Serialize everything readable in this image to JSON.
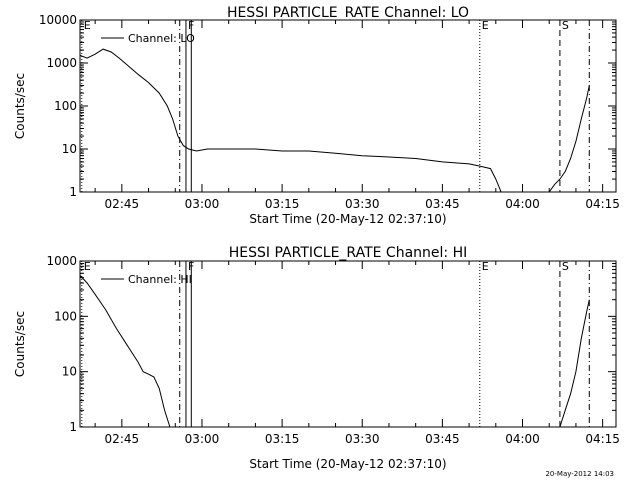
{
  "footer": {
    "stamp": "20-May-2012 14:03"
  },
  "chart_data": [
    {
      "type": "line",
      "title": "HESSI PARTICLE_RATE Channel: LO",
      "ylabel": "Counts/sec",
      "xlabel": "Start Time (20-May-12 02:37:10)",
      "yscale": "log",
      "ylim": [
        1,
        10000
      ],
      "xlim": [
        "02:37:10",
        "04:17:30"
      ],
      "yticks": [
        "1",
        "10",
        "100",
        "1000",
        "10000"
      ],
      "xticks": [
        "02:45",
        "03:00",
        "03:15",
        "03:30",
        "03:45",
        "04:00",
        "04:15"
      ],
      "legend": {
        "label": "Channel: LO",
        "placement": "top-left"
      },
      "markers": [
        {
          "label": "E",
          "time": "02:37:30",
          "style": "dotted"
        },
        {
          "label": "",
          "time": "02:55:50",
          "style": "dashdot"
        },
        {
          "label": "F",
          "time": "02:57:00",
          "style": "solid"
        },
        {
          "label": "",
          "time": "02:58:00",
          "style": "solid"
        },
        {
          "label": "E",
          "time": "03:52:00",
          "style": "dotted"
        },
        {
          "label": "S",
          "time": "04:07:00",
          "style": "dashed"
        },
        {
          "label": "",
          "time": "04:12:30",
          "style": "dashdot"
        }
      ],
      "series": [
        {
          "x": [
            "02:37:10",
            "02:38:30",
            "02:40:00",
            "02:41:30",
            "02:43:00",
            "02:44:30",
            "02:46:00",
            "02:48:00",
            "02:50:00",
            "02:52:00",
            "02:53:30",
            "02:54:30",
            "02:55:30",
            "02:56:30",
            "02:57:30",
            "02:59:00",
            "03:01:00",
            "03:05:00",
            "03:10:00",
            "03:15:00",
            "03:20:00",
            "03:25:00",
            "03:30:00",
            "03:35:00",
            "03:40:00",
            "03:45:00",
            "03:50:00",
            "03:52:00",
            "03:54:00",
            "03:55:00",
            "03:56:00"
          ],
          "values": [
            1500,
            1300,
            1600,
            2100,
            1800,
            1300,
            900,
            550,
            350,
            200,
            100,
            50,
            20,
            12,
            10,
            9,
            10,
            10,
            10,
            9,
            9,
            8,
            7,
            6.5,
            6,
            5,
            4.5,
            4,
            3.5,
            2,
            1
          ]
        },
        {
          "x": [
            "04:05:00",
            "04:06:00",
            "04:07:00",
            "04:08:00",
            "04:09:00",
            "04:10:00",
            "04:11:00",
            "04:12:00",
            "04:12:30"
          ],
          "values": [
            1,
            1.5,
            2,
            3,
            6,
            15,
            50,
            150,
            300
          ]
        }
      ]
    },
    {
      "type": "line",
      "title": "HESSI PARTICLE_RATE Channel: HI",
      "ylabel": "Counts/sec",
      "xlabel": "Start Time (20-May-12 02:37:10)",
      "yscale": "log",
      "ylim": [
        1,
        1000
      ],
      "xlim": [
        "02:37:10",
        "04:17:30"
      ],
      "yticks": [
        "1",
        "10",
        "100",
        "1000"
      ],
      "xticks": [
        "02:45",
        "03:00",
        "03:15",
        "03:30",
        "03:45",
        "04:00",
        "04:15"
      ],
      "legend": {
        "label": "Channel: HI",
        "placement": "top-left"
      },
      "markers": [
        {
          "label": "E",
          "time": "02:37:30",
          "style": "dotted"
        },
        {
          "label": "",
          "time": "02:55:50",
          "style": "dashdot"
        },
        {
          "label": "F",
          "time": "02:57:00",
          "style": "solid"
        },
        {
          "label": "",
          "time": "02:58:00",
          "style": "solid"
        },
        {
          "label": "E",
          "time": "03:52:00",
          "style": "dotted"
        },
        {
          "label": "S",
          "time": "04:07:00",
          "style": "dashed"
        },
        {
          "label": "",
          "time": "04:12:30",
          "style": "dashdot"
        }
      ],
      "series": [
        {
          "x": [
            "02:37:10",
            "02:38:30",
            "02:40:00",
            "02:42:00",
            "02:44:00",
            "02:46:00",
            "02:48:00",
            "02:49:00",
            "02:50:00",
            "02:51:00",
            "02:52:00",
            "02:53:00",
            "02:54:00"
          ],
          "values": [
            550,
            400,
            250,
            130,
            60,
            30,
            15,
            10,
            9,
            8,
            5,
            2,
            1
          ]
        },
        {
          "x": [
            "04:07:00",
            "04:08:00",
            "04:09:00",
            "04:10:00",
            "04:11:00",
            "04:12:00",
            "04:12:30"
          ],
          "values": [
            1,
            2,
            4,
            10,
            40,
            120,
            200
          ]
        }
      ]
    }
  ]
}
